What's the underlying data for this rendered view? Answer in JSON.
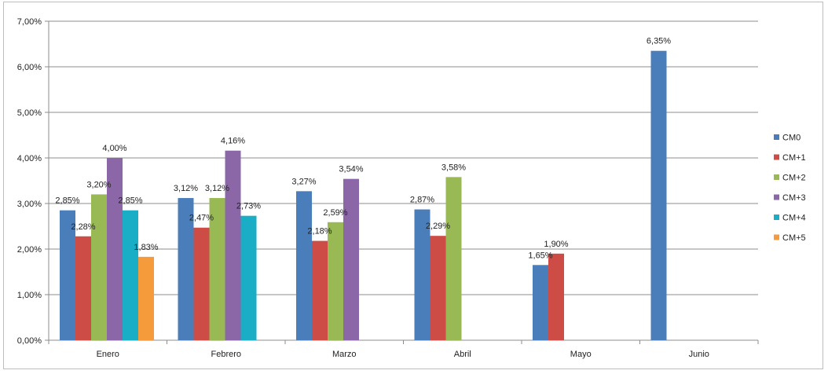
{
  "chart_data": {
    "type": "bar",
    "title": "",
    "xlabel": "",
    "ylabel": "",
    "categories": [
      "Enero",
      "Febrero",
      "Marzo",
      "Abril",
      "Mayo",
      "Junio"
    ],
    "ylim": [
      0,
      0.07
    ],
    "yticks": [
      "0,00%",
      "1,00%",
      "2,00%",
      "3,00%",
      "4,00%",
      "5,00%",
      "6,00%",
      "7,00%"
    ],
    "grid": true,
    "legend_position": "right",
    "series": [
      {
        "name": "CM0",
        "color": "#4a7ebb",
        "values": [
          0.0285,
          0.0312,
          0.0327,
          0.0287,
          0.0165,
          0.0635
        ],
        "labels": [
          "2,85%",
          "3,12%",
          "3,27%",
          "2,87%",
          "1,65%",
          "6,35%"
        ]
      },
      {
        "name": "CM+1",
        "color": "#cd4c46",
        "values": [
          0.0228,
          0.0247,
          0.0218,
          0.0229,
          0.019,
          null
        ],
        "labels": [
          "2,28%",
          "2,47%",
          "2,18%",
          "2,29%",
          "1,90%",
          null
        ]
      },
      {
        "name": "CM+2",
        "color": "#98b954",
        "values": [
          0.032,
          0.0312,
          0.0259,
          0.0358,
          null,
          null
        ],
        "labels": [
          "3,20%",
          "3,12%",
          "2,59%",
          "3,58%",
          null,
          null
        ]
      },
      {
        "name": "CM+3",
        "color": "#8b67a8",
        "values": [
          0.04,
          0.0416,
          0.0354,
          null,
          null,
          null
        ],
        "labels": [
          "4,00%",
          "4,16%",
          "3,54%",
          null,
          null,
          null
        ]
      },
      {
        "name": "CM+4",
        "color": "#19adc6",
        "values": [
          0.0285,
          0.0273,
          null,
          null,
          null,
          null
        ],
        "labels": [
          "2,85%",
          "2,73%",
          null,
          null,
          null,
          null
        ]
      },
      {
        "name": "CM+5",
        "color": "#f59b3c",
        "values": [
          0.0183,
          null,
          null,
          null,
          null,
          null
        ],
        "labels": [
          "1,83%",
          null,
          null,
          null,
          null,
          null
        ]
      }
    ]
  }
}
